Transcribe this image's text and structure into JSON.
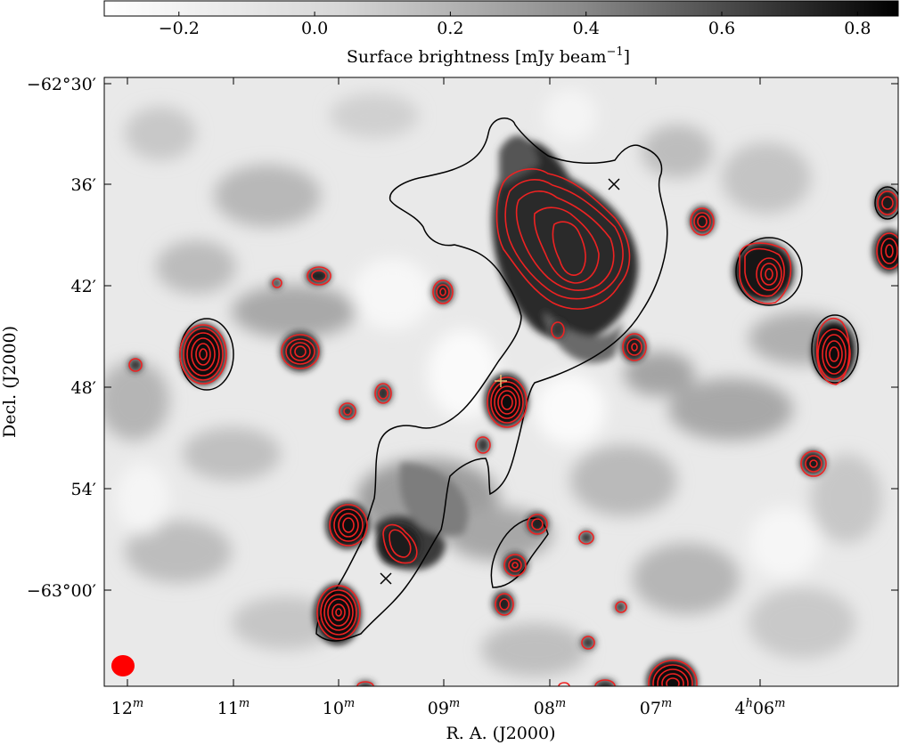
{
  "colorbar": {
    "label": "Surface brightness [mJy beam",
    "label_exp": "−1",
    "label_close": "]",
    "ticks": [
      {
        "value": -0.2,
        "label": "−0.2"
      },
      {
        "value": 0.0,
        "label": "0.0"
      },
      {
        "value": 0.2,
        "label": "0.2"
      },
      {
        "value": 0.4,
        "label": "0.4"
      },
      {
        "value": 0.6,
        "label": "0.6"
      },
      {
        "value": 0.8,
        "label": "0.8"
      }
    ],
    "range": [
      -0.31,
      0.86
    ],
    "colormap": "gray_r"
  },
  "xaxis": {
    "title": "R. A. (J2000)",
    "ticks": [
      {
        "main": "12",
        "sup": "m"
      },
      {
        "main": "11",
        "sup": "m"
      },
      {
        "main": "10",
        "sup": "m"
      },
      {
        "main": "09",
        "sup": "m"
      },
      {
        "main": "08",
        "sup": "m"
      },
      {
        "main": "07",
        "sup": "m"
      },
      {
        "pre": "4",
        "presup": "h",
        "main": "06",
        "sup": "m"
      }
    ]
  },
  "yaxis": {
    "title": "Decl. (J2000)",
    "ticks": [
      {
        "label": "−62°30′"
      },
      {
        "label": "36′"
      },
      {
        "label": "42′"
      },
      {
        "label": "48′"
      },
      {
        "label": "54′"
      },
      {
        "label": "−63°00′"
      }
    ]
  },
  "overlay": {
    "contour_color": "#ee2222",
    "outline_color": "#000000",
    "markers": [
      "cross-marker-north",
      "cross-marker-south",
      "plus-marker-center"
    ],
    "beam_color": "#ff0000"
  }
}
